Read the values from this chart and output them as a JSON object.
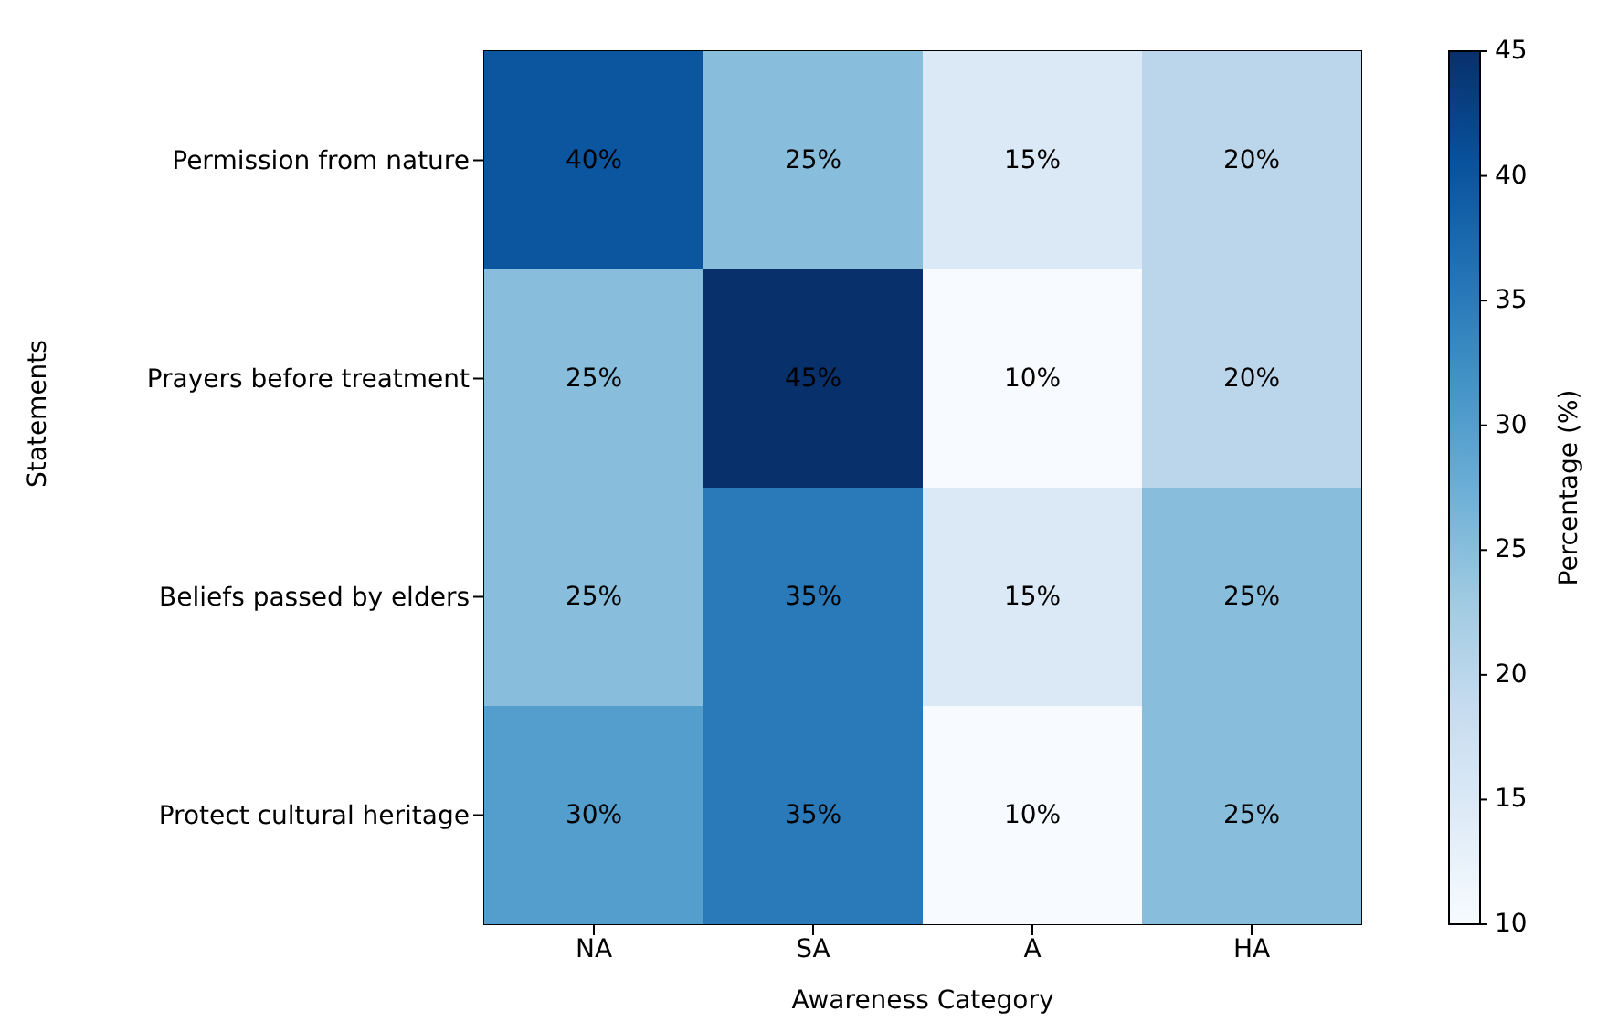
{
  "chart_data": {
    "type": "heatmap",
    "xlabel": "Awareness Category",
    "ylabel": "Statements",
    "clabel": "Percentage (%)",
    "categories": [
      "NA",
      "SA",
      "A",
      "HA"
    ],
    "y_categories": [
      "Permission from nature",
      "Prayers before treatment",
      "Beliefs passed by elders",
      "Protect cultural heritage"
    ],
    "cells": [
      [
        40,
        25,
        15,
        20
      ],
      [
        25,
        45,
        10,
        20
      ],
      [
        25,
        35,
        15,
        25
      ],
      [
        30,
        35,
        10,
        25
      ]
    ],
    "cell_labels": [
      [
        "40%",
        "25%",
        "15%",
        "20%"
      ],
      [
        "25%",
        "45%",
        "10%",
        "20%"
      ],
      [
        "25%",
        "35%",
        "15%",
        "25%"
      ],
      [
        "30%",
        "35%",
        "10%",
        "25%"
      ]
    ],
    "clim": [
      10,
      45
    ],
    "cticks": [
      10,
      15,
      20,
      25,
      30,
      35,
      40,
      45
    ]
  }
}
